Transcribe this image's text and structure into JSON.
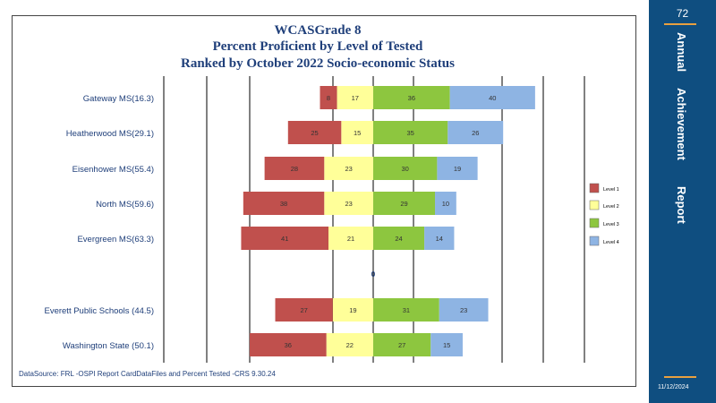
{
  "header": {
    "line1": "WCASGrade 8",
    "line2": "Percent Proficient by Level of Tested",
    "line3": "Ranked by October 2022 Socio-economic  Status"
  },
  "sidebar": {
    "page_number": "72",
    "word1": "Annual",
    "word2": "Achievement",
    "word3": "Report",
    "date": "11/12/2024",
    "accent_color": "#e8a040",
    "background_color": "#0f4e80"
  },
  "footer": {
    "source": "DataSource:  FRL  -OSPI  Report CardDataFiles  and  Percent  Tested     -CRS  9.30.24"
  },
  "chart_data": {
    "type": "bar",
    "orientation": "horizontal-diverging",
    "center_label": "0",
    "grid": true,
    "legend_position": "right",
    "categories": [
      "Gateway  MS(16.3)",
      "Heatherwood  MS(29.1)",
      "Eisenhower MS(55.4)",
      "North MS(59.6)",
      "Evergreen MS(63.3)",
      "",
      "Everett  Public Schools (44.5)",
      "Washington State  (50.1)"
    ],
    "series": [
      {
        "name": "Level 1",
        "color": "#c0504d",
        "side": "left",
        "values": [
          8,
          25,
          28,
          38,
          41,
          null,
          27,
          36
        ]
      },
      {
        "name": "Level 2",
        "color": "#ffff99",
        "side": "left",
        "values": [
          17,
          15,
          23,
          23,
          21,
          null,
          19,
          22
        ]
      },
      {
        "name": "Level 3",
        "color": "#8dc63f",
        "side": "right",
        "values": [
          36,
          35,
          30,
          29,
          24,
          null,
          31,
          27
        ]
      },
      {
        "name": "Level 4",
        "color": "#8eb4e3",
        "side": "right",
        "values": [
          40,
          26,
          19,
          10,
          14,
          null,
          23,
          15
        ]
      }
    ]
  }
}
